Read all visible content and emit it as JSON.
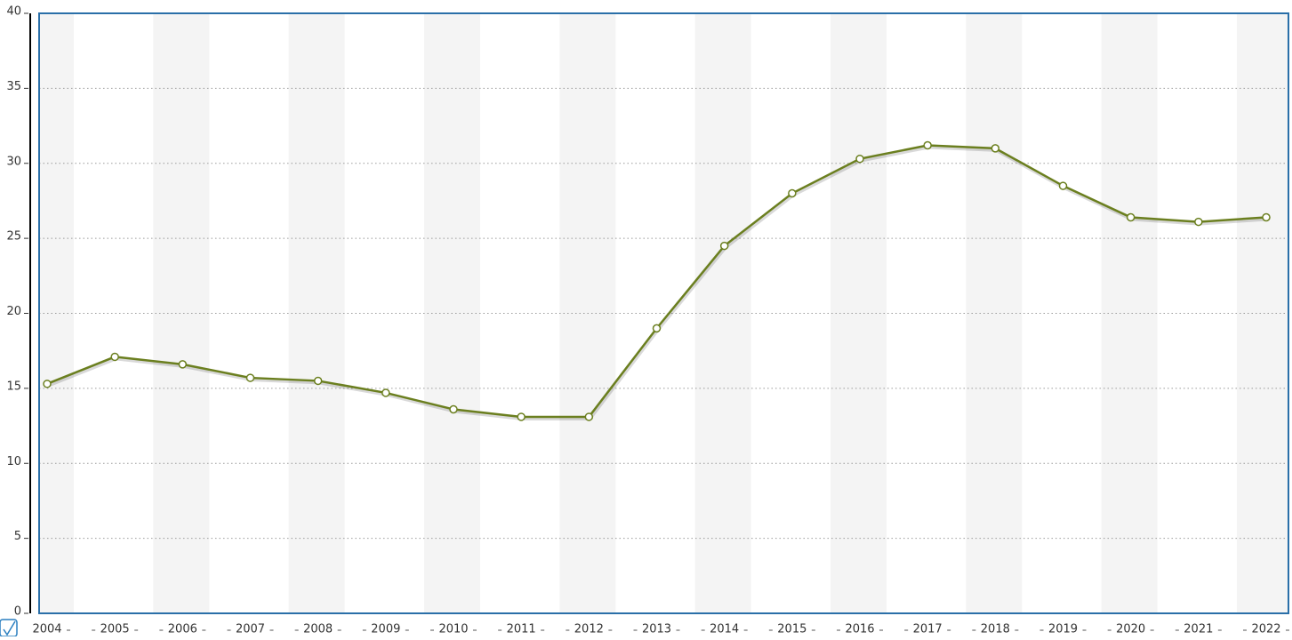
{
  "chart_data": {
    "type": "line",
    "categories": [
      "2004",
      "2005",
      "2006",
      "2007",
      "2008",
      "2009",
      "2010",
      "2011",
      "2012",
      "2013",
      "2014",
      "2015",
      "2016",
      "2017",
      "2018",
      "2019",
      "2020",
      "2021",
      "2022"
    ],
    "series": [
      {
        "color": "#6b7f1f",
        "values": [
          15.3,
          17.1,
          16.6,
          15.7,
          15.5,
          14.7,
          13.6,
          13.1,
          13.1,
          19.0,
          24.5,
          28.0,
          30.3,
          31.2,
          31.0,
          28.5,
          26.4,
          26.1,
          26.4
        ]
      }
    ],
    "ylim": [
      0,
      40
    ],
    "yticks": [
      0,
      5,
      10,
      15,
      20,
      25,
      30,
      35,
      40
    ],
    "grid": true
  }
}
